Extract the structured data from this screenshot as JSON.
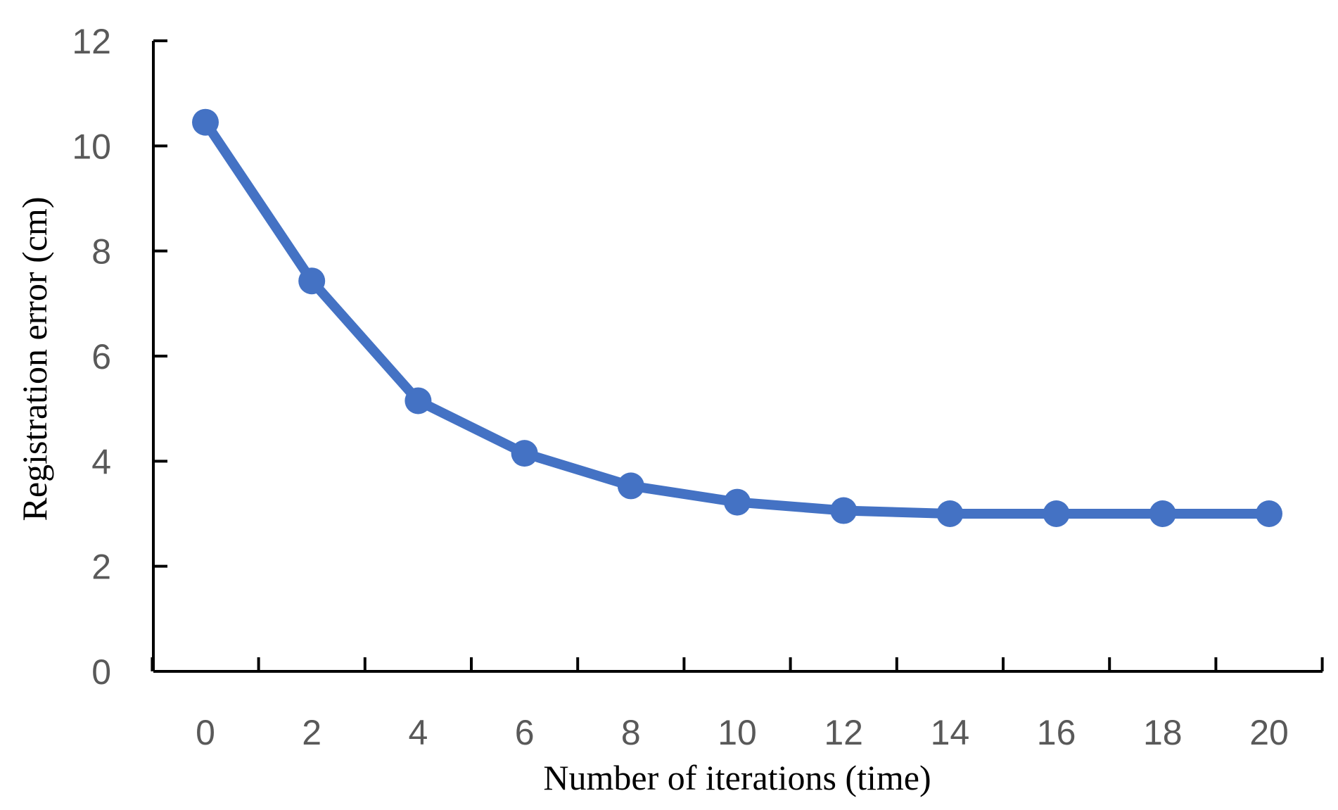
{
  "chart_data": {
    "type": "line",
    "title": "",
    "xlabel": "Number of iterations (time)",
    "ylabel": "Registration error (cm)",
    "x": [
      0,
      2,
      4,
      6,
      8,
      10,
      12,
      14,
      16,
      18,
      20
    ],
    "series": [
      {
        "values": [
          10.45,
          7.43,
          5.15,
          4.15,
          3.53,
          3.22,
          3.06,
          3.0,
          3.0,
          3.0,
          3.0
        ],
        "color": "#4472C4",
        "marker": "circle"
      }
    ],
    "xticks": [
      "0",
      "2",
      "4",
      "6",
      "8",
      "10",
      "12",
      "14",
      "16",
      "18",
      "20"
    ],
    "yticks": [
      "0",
      "2",
      "4",
      "6",
      "8",
      "10",
      "12"
    ],
    "ylim": [
      0,
      12
    ],
    "grid": false,
    "legend": "none"
  }
}
